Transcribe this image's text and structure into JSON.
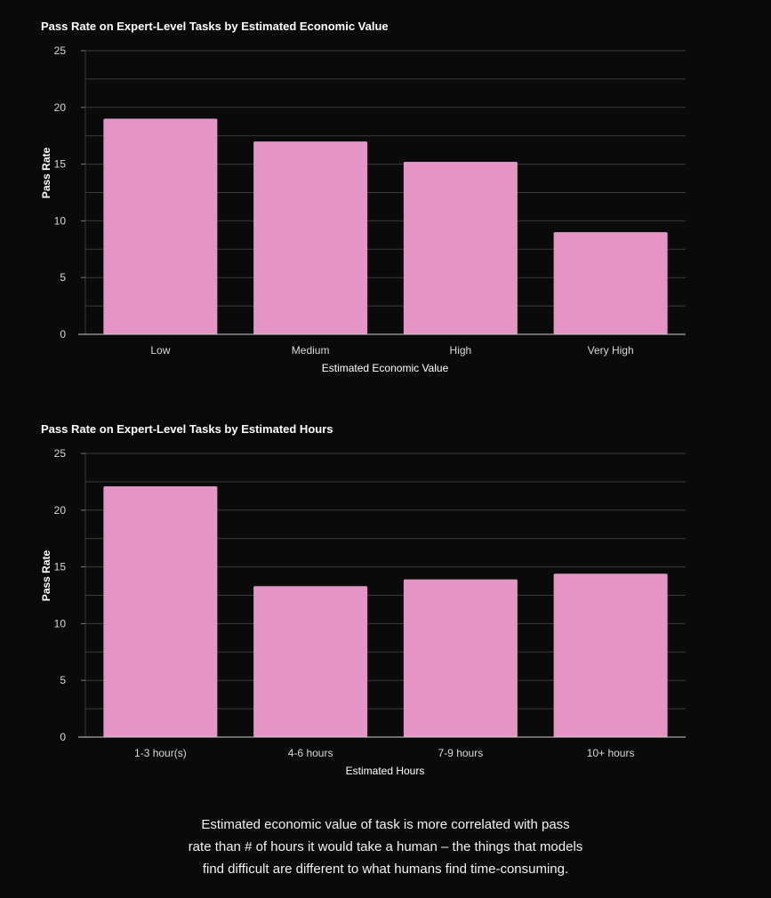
{
  "chart_data": [
    {
      "type": "bar",
      "title": "Pass Rate on Expert-Level Tasks by Estimated Economic Value",
      "xlabel": "Estimated Economic Value",
      "ylabel": "Pass Rate",
      "categories": [
        "Low",
        "Medium",
        "High",
        "Very High"
      ],
      "values": [
        19.0,
        17.0,
        15.2,
        9.0
      ],
      "ylim": [
        0,
        25
      ],
      "yticks": [
        "0",
        "5",
        "10",
        "15",
        "20",
        "25"
      ],
      "grid": true,
      "bar_color": "#e495c5"
    },
    {
      "type": "bar",
      "title": "Pass Rate on Expert-Level Tasks by Estimated Hours",
      "xlabel": "Estimated Hours",
      "ylabel": "Pass Rate",
      "categories": [
        "1-3 hour(s)",
        "4-6 hours",
        "7-9 hours",
        "10+ hours"
      ],
      "values": [
        22.1,
        13.3,
        13.9,
        14.4
      ],
      "ylim": [
        0,
        25
      ],
      "yticks": [
        "0",
        "5",
        "10",
        "15",
        "20",
        "25"
      ],
      "grid": true,
      "bar_color": "#e495c5"
    }
  ],
  "caption": {
    "lines": [
      "Estimated economic value of task is more correlated with pass",
      "rate than # of hours it would take a human – the things that models",
      "find difficult are different to what humans find time-consuming."
    ]
  }
}
